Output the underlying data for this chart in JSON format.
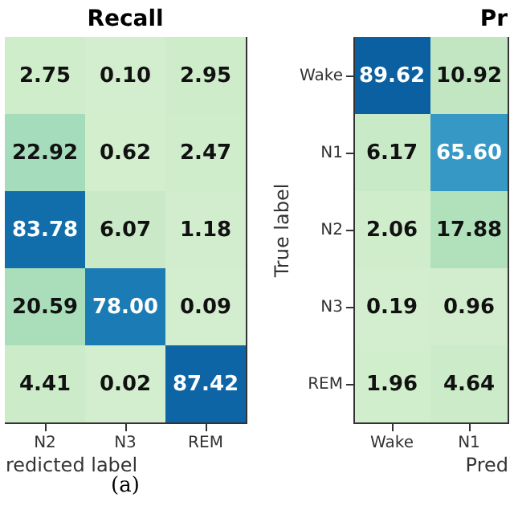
{
  "chart_data": [
    {
      "type": "heatmap",
      "title": "Recall",
      "xlabel": "redicted label",
      "annotations": [
        "(a)"
      ],
      "tick_labels": "x",
      "categories": [
        "N2",
        "N3",
        "REM"
      ],
      "y_categories": [
        null,
        null,
        null,
        null,
        null
      ],
      "cells": [
        [
          2.75,
          0.1,
          2.95
        ],
        [
          22.92,
          0.62,
          2.47
        ],
        [
          83.78,
          6.07,
          1.18
        ],
        [
          20.59,
          78.0,
          0.09
        ],
        [
          4.41,
          0.02,
          87.42
        ]
      ],
      "cell_labels": [
        [
          "2.75",
          "0.10",
          "2.95"
        ],
        [
          "22.92",
          "0.62",
          "2.47"
        ],
        [
          "83.78",
          "6.07",
          "1.18"
        ],
        [
          "20.59",
          "78.00",
          "0.09"
        ],
        [
          "4.41",
          "0.02",
          "87.42"
        ]
      ]
    },
    {
      "type": "heatmap",
      "title": "Pr",
      "xlabel": "Pred",
      "ylabel": "True label",
      "categories": [
        "Wake",
        "N1"
      ],
      "y_categories": [
        "Wake",
        "N1",
        "N2",
        "N3",
        "REM"
      ],
      "cells": [
        [
          89.62,
          10.92
        ],
        [
          6.17,
          65.6
        ],
        [
          2.06,
          17.88
        ],
        [
          0.19,
          0.96
        ],
        [
          1.96,
          4.64
        ]
      ],
      "cell_labels": [
        [
          "89.62",
          "10.92"
        ],
        [
          "6.17",
          "65.60"
        ],
        [
          "2.06",
          "17.88"
        ],
        [
          "0.19",
          "0.96"
        ],
        [
          "1.96",
          "4.64"
        ]
      ]
    }
  ]
}
